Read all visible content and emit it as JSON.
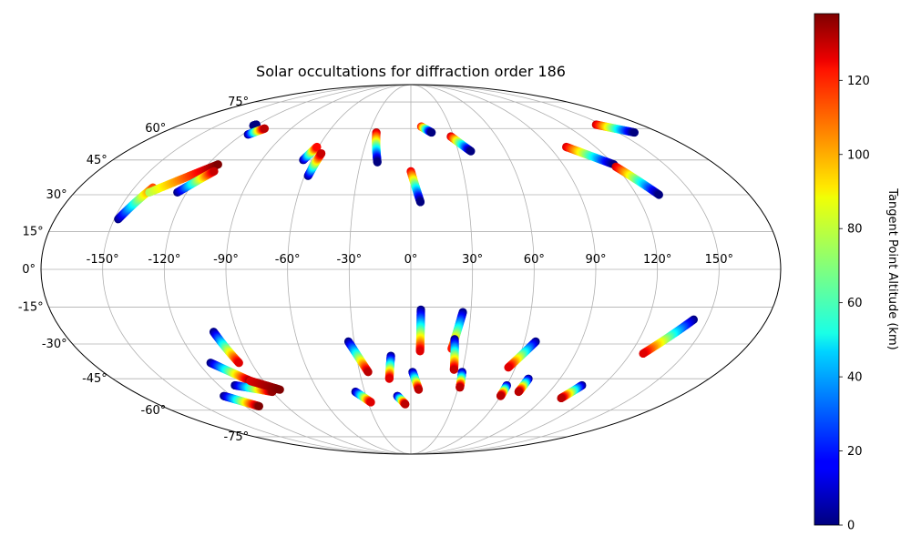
{
  "chart_data": {
    "type": "scatter",
    "projection": "mollweide",
    "title": "Solar occultations for diffraction order 186",
    "grid": true,
    "x_tick_labels": [
      "-150°",
      "-120°",
      "-90°",
      "-60°",
      "-30°",
      "0°",
      "30°",
      "60°",
      "90°",
      "120°",
      "150°"
    ],
    "x_ticks": [
      -150,
      -120,
      -90,
      -60,
      -30,
      0,
      30,
      60,
      90,
      120,
      150
    ],
    "y_tick_labels": [
      "-75°",
      "-60°",
      "-45°",
      "-30°",
      "-15°",
      "0°",
      "15°",
      "30°",
      "45°",
      "60°",
      "75°"
    ],
    "y_ticks": [
      -75,
      -60,
      -45,
      -30,
      -15,
      0,
      15,
      30,
      45,
      60,
      75
    ],
    "colorbar": {
      "label": "Tangent Point Altitude (km)",
      "colormap": "jet",
      "range": [
        0,
        138
      ],
      "tick_labels": [
        "0",
        "20",
        "40",
        "60",
        "80",
        "100",
        "120"
      ],
      "ticks": [
        0,
        20,
        40,
        60,
        80,
        100,
        120
      ]
    },
    "tracks": [
      {
        "lon_start": -121,
        "lat_start": 62,
        "alt_start": 0,
        "lon_end": -122,
        "lat_end": 61.5,
        "alt_end": 0
      },
      {
        "lon_start": -116,
        "lat_start": 57,
        "alt_start": 0,
        "lon_end": -110,
        "lat_end": 60,
        "alt_end": 130
      },
      {
        "lon_start": -148,
        "lat_start": 20,
        "alt_start": 0,
        "lon_end": -140,
        "lat_end": 33,
        "alt_end": 110
      },
      {
        "lon_start": -140,
        "lat_start": 31,
        "alt_start": 75,
        "lon_end": -114,
        "lat_end": 43,
        "alt_end": 138
      },
      {
        "lon_start": -125,
        "lat_start": 31,
        "alt_start": 0,
        "lon_end": -113,
        "lat_end": 40,
        "alt_end": 128
      },
      {
        "lon_start": -65,
        "lat_start": 45,
        "alt_start": 0,
        "lon_end": -61,
        "lat_end": 51,
        "alt_end": 120
      },
      {
        "lon_start": -58,
        "lat_start": 38,
        "alt_start": 0,
        "lon_end": -56,
        "lat_end": 48,
        "alt_end": 128
      },
      {
        "lon_start": -25,
        "lat_start": 58,
        "alt_start": 130,
        "lon_end": -20,
        "lat_end": 44,
        "alt_end": 0
      },
      {
        "lon_start": 8,
        "lat_start": 61,
        "alt_start": 120,
        "lon_end": 15,
        "lat_end": 58,
        "alt_end": 0
      },
      {
        "lon_start": 28,
        "lat_start": 56,
        "alt_start": 128,
        "lon_end": 38,
        "lat_end": 49,
        "alt_end": 0
      },
      {
        "lon_start": 0,
        "lat_start": 40,
        "alt_start": 125,
        "lon_end": 5,
        "lat_end": 27,
        "alt_end": 0
      },
      {
        "lon_start": 101,
        "lat_start": 51,
        "alt_start": 126,
        "lon_end": 120,
        "lat_end": 43,
        "alt_end": 0
      },
      {
        "lon_start": 145,
        "lat_start": 62,
        "alt_start": 128,
        "lon_end": 162,
        "lat_end": 58,
        "alt_end": 0
      },
      {
        "lon_start": 120,
        "lat_start": 42,
        "alt_start": 128,
        "lon_end": 132,
        "lat_end": 30,
        "alt_end": 0
      },
      {
        "lon_start": -102,
        "lat_start": -25,
        "alt_start": 0,
        "lon_end": -97,
        "lat_end": -38,
        "alt_end": 125
      },
      {
        "lon_start": -113,
        "lat_start": -38,
        "alt_start": 0,
        "lon_end": -98,
        "lat_end": -46,
        "alt_end": 135
      },
      {
        "lon_start": -110,
        "lat_start": -48,
        "alt_start": 0,
        "lon_end": -90,
        "lat_end": -51,
        "alt_end": 135
      },
      {
        "lon_start": -98,
        "lat_start": -46,
        "alt_start": 125,
        "lon_end": -84,
        "lat_end": -50,
        "alt_end": 138
      },
      {
        "lon_start": -125,
        "lat_start": -53,
        "alt_start": 0,
        "lon_end": -110,
        "lat_end": -58,
        "alt_end": 138
      },
      {
        "lon_start": -33,
        "lat_start": -29,
        "alt_start": 0,
        "lon_end": -25,
        "lat_end": -42,
        "alt_end": 130
      },
      {
        "lon_start": -36,
        "lat_start": -51,
        "alt_start": 0,
        "lon_end": -28,
        "lat_end": -56,
        "alt_end": 125
      },
      {
        "lon_start": -11,
        "lat_start": -35,
        "alt_start": 0,
        "lon_end": -13,
        "lat_end": -45,
        "alt_end": 125
      },
      {
        "lon_start": 5,
        "lat_start": -16,
        "alt_start": 0,
        "lon_end": 5,
        "lat_end": -33,
        "alt_end": 125
      },
      {
        "lon_start": -9,
        "lat_start": -53,
        "alt_start": 0,
        "lon_end": -4,
        "lat_end": -57,
        "alt_end": 130
      },
      {
        "lon_start": 1,
        "lat_start": -42,
        "alt_start": 0,
        "lon_end": 5,
        "lat_end": -50,
        "alt_end": 130
      },
      {
        "lon_start": 26,
        "lat_start": -17,
        "alt_start": 0,
        "lon_end": 22,
        "lat_end": -32,
        "alt_end": 118
      },
      {
        "lon_start": 23,
        "lat_start": -28,
        "alt_start": 0,
        "lon_end": 25,
        "lat_end": -41,
        "alt_end": 128
      },
      {
        "lon_start": 30,
        "lat_start": -42,
        "alt_start": 0,
        "lon_end": 31,
        "lat_end": -49,
        "alt_end": 130
      },
      {
        "lon_start": 66,
        "lat_start": -29,
        "alt_start": 0,
        "lon_end": 56,
        "lat_end": -40,
        "alt_end": 125
      },
      {
        "lon_start": 60,
        "lat_start": -48,
        "alt_start": 0,
        "lon_end": 60,
        "lat_end": -53,
        "alt_end": 130
      },
      {
        "lon_start": 71,
        "lat_start": -45,
        "alt_start": 0,
        "lon_end": 70,
        "lat_end": -51,
        "alt_end": 130
      },
      {
        "lon_start": 107,
        "lat_start": -48,
        "alt_start": 0,
        "lon_end": 102,
        "lat_end": -54,
        "alt_end": 130
      },
      {
        "lon_start": 143,
        "lat_start": -20,
        "alt_start": 0,
        "lon_end": 127,
        "lat_end": -34,
        "alt_end": 125
      }
    ]
  }
}
